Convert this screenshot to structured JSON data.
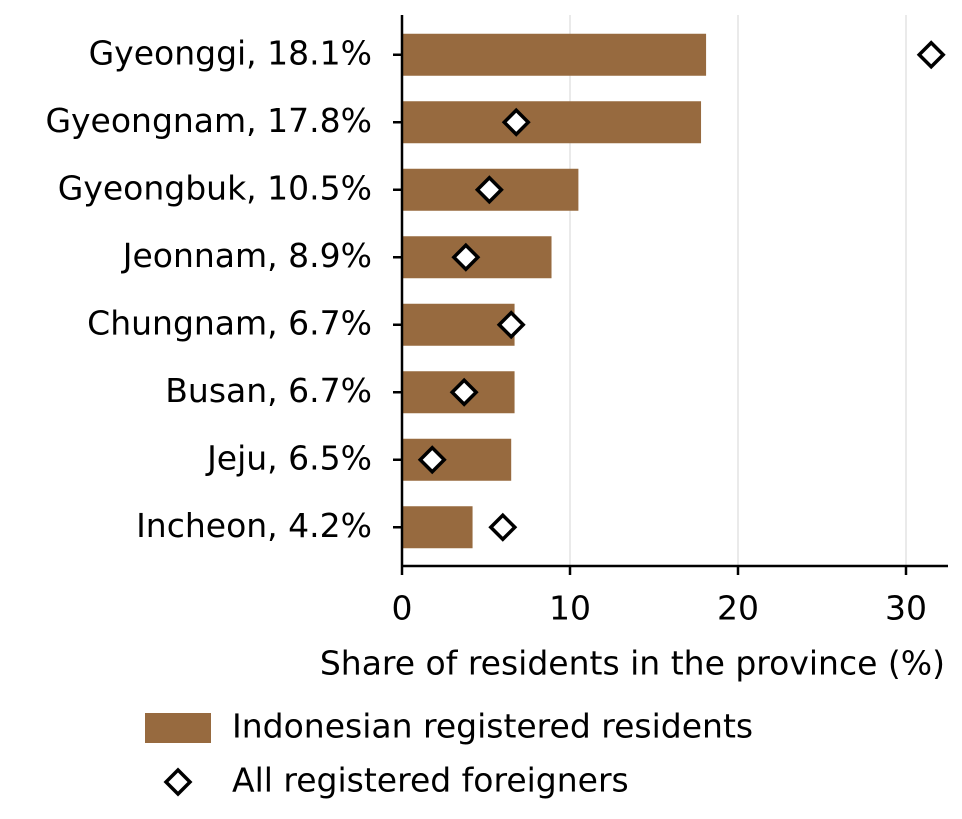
{
  "chart_data": {
    "type": "bar",
    "orientation": "horizontal",
    "categories": [
      "Gyeonggi, 18.1%",
      "Gyeongnam, 17.8%",
      "Gyeongbuk, 10.5%",
      "Jeonnam, 8.9%",
      "Chungnam, 6.7%",
      "Busan, 6.7%",
      "Jeju, 6.5%",
      "Incheon, 4.2%"
    ],
    "series": [
      {
        "name": "Indonesian registered residents",
        "type": "bar",
        "color": "#976a3f",
        "values": [
          18.1,
          17.8,
          10.5,
          8.9,
          6.7,
          6.7,
          6.5,
          4.2
        ]
      },
      {
        "name": "All registered foreigners",
        "type": "scatter",
        "marker": "diamond",
        "color": "#000000",
        "values": [
          31.5,
          6.8,
          5.2,
          3.8,
          6.5,
          3.7,
          1.8,
          6.0
        ]
      }
    ],
    "x_label": "Share of residents in the province (%)",
    "xlim": [
      0,
      32.5
    ],
    "xticks": [
      0,
      10,
      20,
      30
    ],
    "grid": true,
    "legend": "bottom"
  }
}
